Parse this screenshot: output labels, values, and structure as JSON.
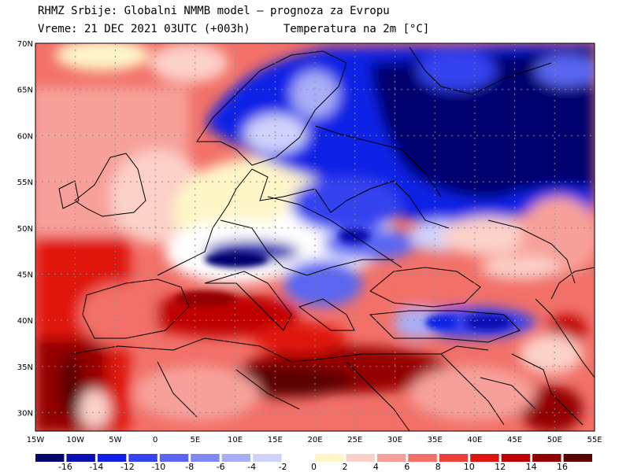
{
  "header": {
    "line1": "RHMZ Srbije: Globalni NMMB model — prognoza za Evropu",
    "line2": "Vreme: 21 DEC 2021 03UTC (+003h)     Temperatura na 2m [°C]"
  },
  "axes": {
    "lat_labels": [
      "70N",
      "65N",
      "60N",
      "55N",
      "50N",
      "45N",
      "40N",
      "35N",
      "30N"
    ],
    "lat_values": [
      70,
      65,
      60,
      55,
      50,
      45,
      40,
      35,
      30
    ],
    "lon_labels": [
      "15W",
      "10W",
      "5W",
      "0",
      "5E",
      "10E",
      "15E",
      "20E",
      "25E",
      "30E",
      "35E",
      "40E",
      "45E",
      "50E",
      "55E"
    ],
    "lon_values": [
      -15,
      -10,
      -5,
      0,
      5,
      10,
      15,
      20,
      25,
      30,
      35,
      40,
      45,
      50,
      55
    ],
    "lon_range": [
      -15,
      55
    ],
    "lat_range": [
      28,
      70
    ],
    "grid": "dotted"
  },
  "legend": {
    "labels": [
      "-16",
      "-14",
      "-12",
      "-10",
      "-8",
      "-6",
      "-4",
      "-2",
      "0",
      "2",
      "4",
      "6",
      "8",
      "10",
      "12",
      "14",
      "16"
    ],
    "colors": [
      "#06066e",
      "#0a10b4",
      "#1020e6",
      "#3442f0",
      "#5a66f2",
      "#8088f4",
      "#a8aef6",
      "#cfd2fb",
      "#ffffff",
      "#fff6c8",
      "#fbd0c8",
      "#f7a09a",
      "#f27068",
      "#ec4038",
      "#e0140c",
      "#c00000",
      "#940000",
      "#5c0000"
    ]
  }
}
